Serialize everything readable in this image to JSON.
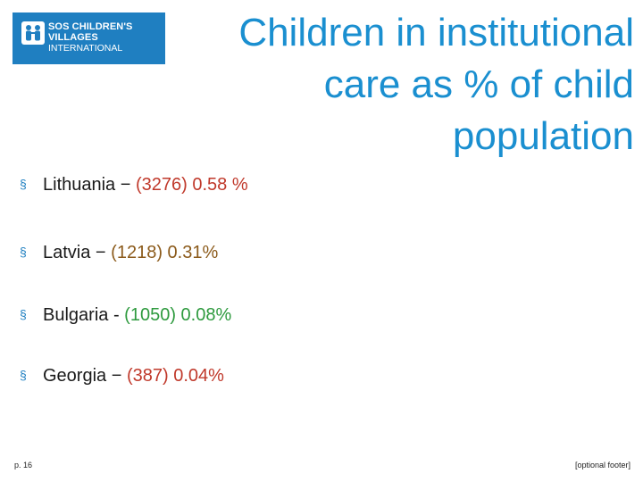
{
  "logo": {
    "line1": "SOS CHILDREN'S",
    "line2": "VILLAGES",
    "line3": "INTERNATIONAL",
    "icon": "sos-children-figures-icon",
    "bg_color": "#1f7fc1"
  },
  "title": {
    "line1": "Children in institutional",
    "line2": "care as % of child",
    "line3": "population",
    "color": "#1a8fd0"
  },
  "bullets": [
    {
      "country": "Lithuania",
      "sep": " − ",
      "value": "(3276) 0.58 %",
      "value_color": "#c0392b"
    },
    {
      "country": "Latvia",
      "sep": " − ",
      "value": "(1218) 0.31%",
      "value_color": "#8b5a1a"
    },
    {
      "country": "Bulgaria",
      "sep": " - ",
      "value": "(1050) 0.08%",
      "value_color": "#2e9a3e"
    },
    {
      "country": "Georgia",
      "sep": " − ",
      "value": "(387) 0.04%",
      "value_color": "#c0392b"
    }
  ],
  "bullet_marker": "§",
  "footer": {
    "page_number": "p. 16",
    "text": "[optional footer]"
  }
}
